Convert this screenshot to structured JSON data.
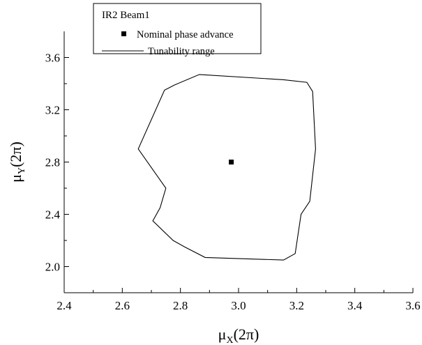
{
  "chart_data": {
    "type": "line",
    "xlim": [
      2.4,
      3.6
    ],
    "ylim": [
      1.8,
      3.8
    ],
    "x_ticks": [
      "2.4",
      "2.6",
      "2.8",
      "3.0",
      "3.2",
      "3.4",
      "3.6"
    ],
    "y_ticks": [
      "2.0",
      "2.4",
      "2.8",
      "3.2",
      "3.6"
    ],
    "xlabel": {
      "symbol": "μ",
      "sub": "X",
      "unit": "(2π)"
    },
    "ylabel": {
      "symbol": "μ",
      "sub": "Y",
      "unit": "(2π)"
    },
    "legend": {
      "title": "IR2 Beam1",
      "placement": "top-left",
      "entries": [
        {
          "label": "Nominal phase advance",
          "marker": "square"
        },
        {
          "label": "Tunability range",
          "marker": "line"
        }
      ]
    },
    "series": [
      {
        "name": "Nominal phase advance",
        "kind": "point",
        "x": [
          2.975
        ],
        "y": [
          2.8
        ]
      },
      {
        "name": "Tunability range",
        "kind": "closed-line",
        "x": [
          2.865,
          3.155,
          3.235,
          3.255,
          3.265,
          3.245,
          3.215,
          3.195,
          3.155,
          2.885,
          2.815,
          2.775,
          2.705,
          2.73,
          2.75,
          2.655,
          2.745,
          2.78
        ],
        "y": [
          3.47,
          3.43,
          3.41,
          3.34,
          2.9,
          2.5,
          2.4,
          2.1,
          2.05,
          2.07,
          2.15,
          2.2,
          2.35,
          2.45,
          2.6,
          2.9,
          3.35,
          3.39
        ]
      }
    ],
    "colors": {
      "line": "#000000",
      "marker": "#000000"
    }
  }
}
